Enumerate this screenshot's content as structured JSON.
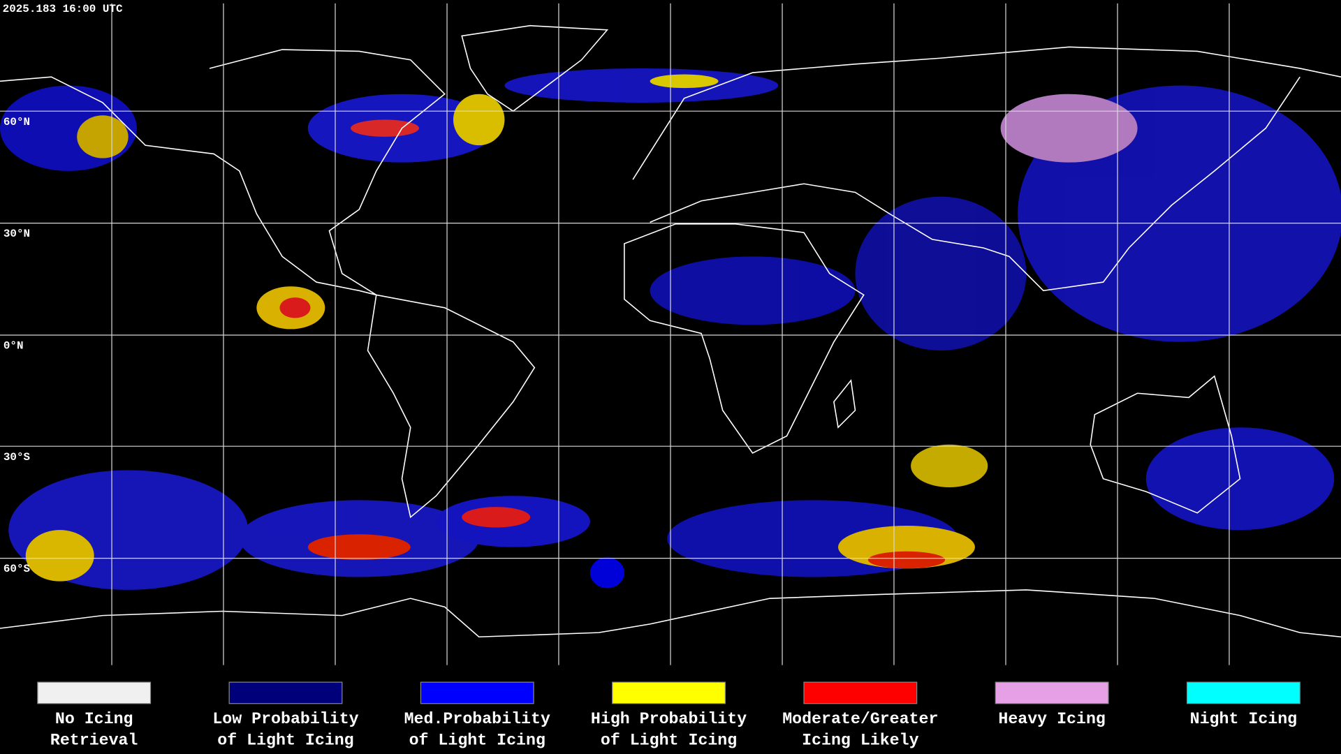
{
  "header": {
    "timestamp": "2025.183 16:00 UTC"
  },
  "latitude_labels": [
    "60°N",
    "30°N",
    "0°N",
    "30°S",
    "60°S"
  ],
  "legend": [
    {
      "lines": [
        "No Icing",
        "Retrieval"
      ],
      "color": "#f0f0f0"
    },
    {
      "lines": [
        "Low Probability",
        "of Light Icing"
      ],
      "color": "#00007a"
    },
    {
      "lines": [
        "Med.Probability",
        "of Light Icing"
      ],
      "color": "#0000ff"
    },
    {
      "lines": [
        "High Probability",
        "of Light Icing"
      ],
      "color": "#ffff00"
    },
    {
      "lines": [
        "Moderate/Greater",
        "Icing Likely"
      ],
      "color": "#ff0000"
    },
    {
      "lines": [
        "Heavy Icing"
      ],
      "color": "#e6a0e6"
    },
    {
      "lines": [
        "Night Icing"
      ],
      "color": "#00ffff"
    }
  ]
}
